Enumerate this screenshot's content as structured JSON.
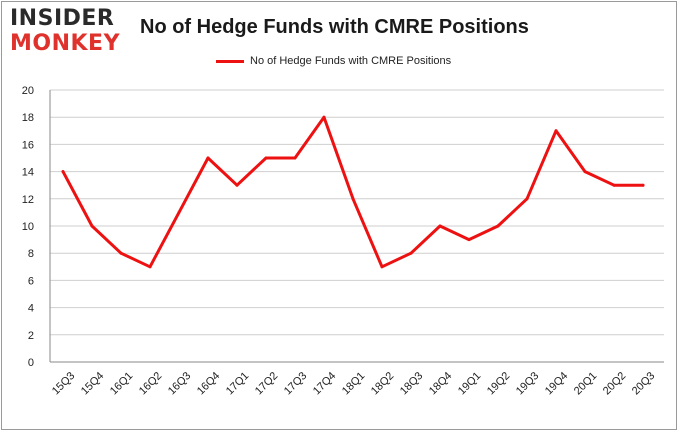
{
  "logo": {
    "line1": "INSIDER",
    "line2": "MONKEY"
  },
  "colors": {
    "line": "#ee1111",
    "grid": "#cfcfcf",
    "axis": "#8a8a8a",
    "logo_dark": "#2a2a2a",
    "logo_red": "#e0322c"
  },
  "chart_data": {
    "type": "line",
    "title": "No of Hedge Funds with CMRE Positions",
    "legend_position": "top",
    "grid": true,
    "categories": [
      "15Q3",
      "15Q4",
      "16Q1",
      "16Q2",
      "16Q3",
      "16Q4",
      "17Q1",
      "17Q2",
      "17Q3",
      "17Q4",
      "18Q1",
      "18Q2",
      "18Q3",
      "18Q4",
      "19Q1",
      "19Q2",
      "19Q3",
      "19Q4",
      "20Q1",
      "20Q2",
      "20Q3"
    ],
    "series": [
      {
        "name": "No of Hedge Funds with CMRE Positions",
        "values": [
          14,
          10,
          8,
          7,
          11,
          15,
          13,
          15,
          15,
          18,
          12,
          7,
          8,
          10,
          9,
          10,
          12,
          17,
          14,
          13,
          13
        ]
      }
    ],
    "ylim": [
      0,
      20
    ],
    "yticks": [
      0,
      2,
      4,
      6,
      8,
      10,
      12,
      14,
      16,
      18,
      20
    ]
  }
}
